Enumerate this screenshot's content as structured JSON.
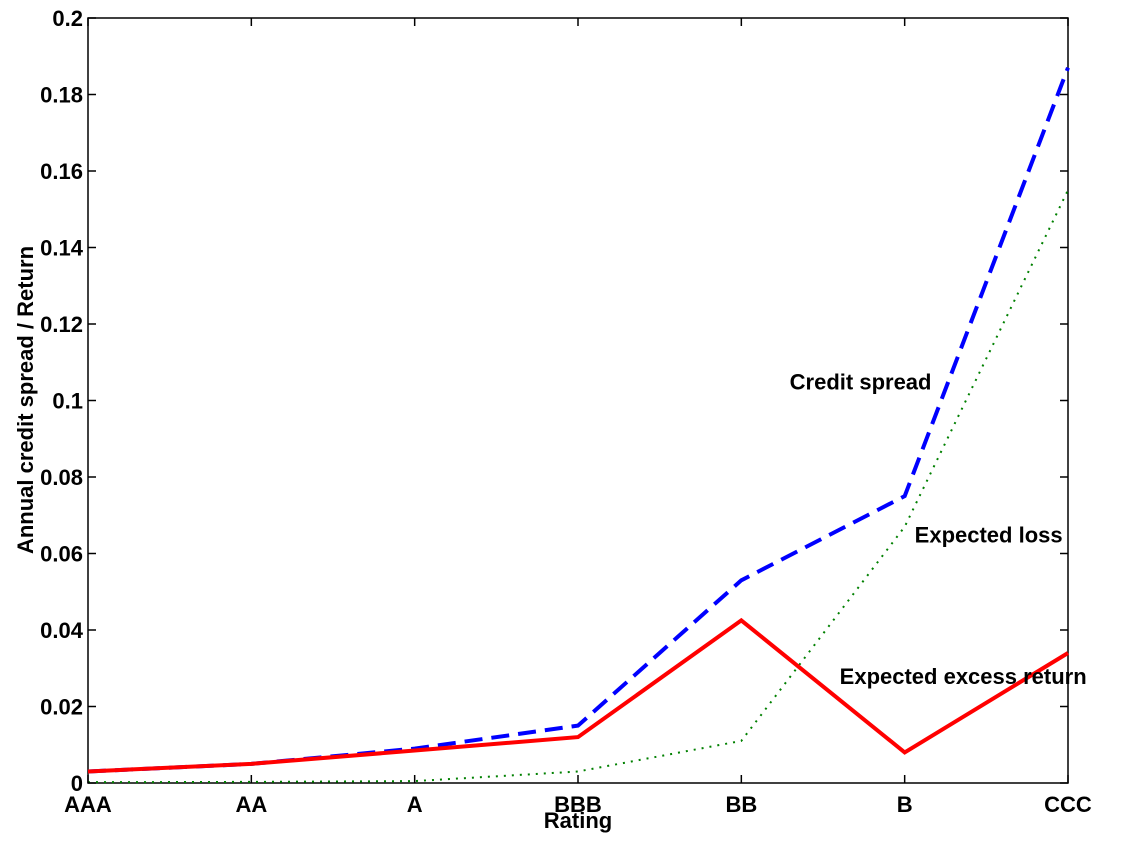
{
  "chart_data": {
    "type": "line",
    "title": "",
    "xlabel": "Rating",
    "ylabel": "Annual credit spread / Return",
    "categories": [
      "AAA",
      "AA",
      "A",
      "BBB",
      "BB",
      "B",
      "CCC"
    ],
    "ylim": [
      0,
      0.2
    ],
    "yticks": [
      "0",
      "0.02",
      "0.04",
      "0.06",
      "0.08",
      "0.1",
      "0.12",
      "0.14",
      "0.16",
      "0.18",
      "0.2"
    ],
    "grid": false,
    "legend": "none",
    "series": [
      {
        "values": [
          0.003,
          0.005,
          0.009,
          0.015,
          0.053,
          0.075,
          0.187
        ],
        "color": "#0000ff",
        "style": "dashed"
      },
      {
        "values": [
          0.0002,
          0.0003,
          0.0005,
          0.003,
          0.011,
          0.067,
          0.155
        ],
        "color": "#008000",
        "style": "dotted"
      },
      {
        "values": [
          0.003,
          0.005,
          0.0085,
          0.012,
          0.0425,
          0.008,
          0.034
        ],
        "color": "#ff0000",
        "style": "solid"
      }
    ],
    "annotations": [
      {
        "text": "Credit spread",
        "x": "B",
        "y": 0.105
      },
      {
        "text": "Expected loss",
        "x": "B",
        "y": 0.065
      },
      {
        "text": "Expected excess return",
        "x": "B",
        "y": 0.028
      }
    ]
  }
}
